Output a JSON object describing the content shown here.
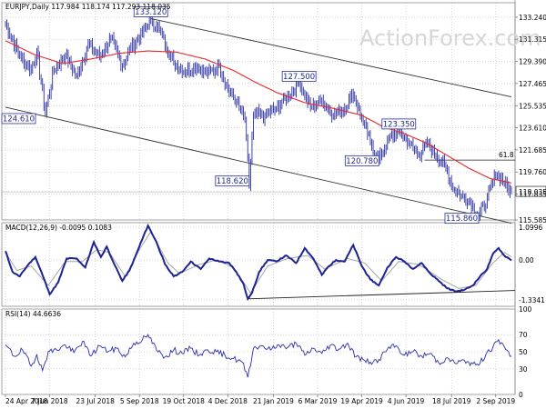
{
  "colors": {
    "price": "#2a2f9e",
    "ma": "#e8262b",
    "channel": "#333333",
    "macd_line": "#1b2395",
    "macd_signal": "#a7a7a7",
    "rsi": "#2a2fb0",
    "grid": "#bcbcbc",
    "label_border": "#2a2f9e",
    "fib_label": "#666666"
  },
  "header": {
    "price_title": "EURJPY,Daily  117.984 118.174 117.293 118.035",
    "macd_title": "MACD(12,26,9) -0.0095 0.1083",
    "rsi_title": "RSI(14) 44.6636"
  },
  "watermark": "ActionForex.com",
  "chart_data": [
    {
      "type": "line",
      "title": "EURJPY,Daily",
      "ohlc_header": {
        "open": 117.984,
        "high": 118.174,
        "low": 117.293,
        "close": 118.035
      },
      "ylim": [
        115.585,
        134.5
      ],
      "y_ticks": [
        "133.240",
        "131.315",
        "129.390",
        "127.465",
        "125.535",
        "123.610",
        "121.685",
        "119.760",
        "117.835",
        "115.585"
      ],
      "y_tick_values": [
        133.24,
        131.315,
        129.39,
        127.465,
        125.535,
        123.61,
        121.685,
        119.76,
        117.835,
        115.585
      ],
      "last_price_tag": {
        "label": "118.035",
        "value": 118.035
      },
      "x_tick_labels": [
        "24 Apr 2018",
        "7 Jun 2018",
        "23 Jul 2018",
        "5 Sep 2018",
        "19 Oct 2018",
        "4 Dec 2018",
        "21 Jan 2019",
        "6 Mar 2019",
        "19 Apr 2019",
        "4 Jun 2019",
        "18 Jul 2019",
        "2 Sep 2019"
      ],
      "x_tick_index": [
        0,
        31,
        63,
        94,
        125,
        156,
        188,
        219,
        250,
        281,
        313,
        344
      ],
      "bar_count": 356,
      "price_anchors": [
        [
          0,
          132.7
        ],
        [
          10,
          129.8
        ],
        [
          18,
          128.7
        ],
        [
          22,
          130.3
        ],
        [
          28,
          124.9
        ],
        [
          34,
          128.7
        ],
        [
          42,
          129.9
        ],
        [
          50,
          128.1
        ],
        [
          58,
          130.9
        ],
        [
          66,
          129.8
        ],
        [
          74,
          131.4
        ],
        [
          82,
          129.0
        ],
        [
          88,
          130.6
        ],
        [
          96,
          131.8
        ],
        [
          102,
          133.12
        ],
        [
          110,
          131.6
        ],
        [
          118,
          129.3
        ],
        [
          126,
          128.5
        ],
        [
          134,
          129.0
        ],
        [
          142,
          128.3
        ],
        [
          150,
          129.0
        ],
        [
          156,
          127.0
        ],
        [
          162,
          125.8
        ],
        [
          168,
          124.3
        ],
        [
          171,
          118.62
        ],
        [
          174,
          124.7
        ],
        [
          182,
          124.7
        ],
        [
          190,
          125.3
        ],
        [
          198,
          126.4
        ],
        [
          206,
          127.5
        ],
        [
          214,
          125.4
        ],
        [
          222,
          126.0
        ],
        [
          230,
          124.7
        ],
        [
          238,
          125.3
        ],
        [
          244,
          126.7
        ],
        [
          250,
          124.3
        ],
        [
          256,
          122.4
        ],
        [
          262,
          120.78
        ],
        [
          268,
          122.5
        ],
        [
          276,
          123.35
        ],
        [
          284,
          122.2
        ],
        [
          290,
          121.2
        ],
        [
          296,
          122.2
        ],
        [
          302,
          121.2
        ],
        [
          308,
          120.4
        ],
        [
          314,
          118.4
        ],
        [
          320,
          117.7
        ],
        [
          326,
          117.2
        ],
        [
          332,
          115.86
        ],
        [
          338,
          117.5
        ],
        [
          344,
          119.5
        ],
        [
          348,
          119.3
        ],
        [
          352,
          118.4
        ],
        [
          355,
          118.035
        ]
      ],
      "ma_anchors": [
        [
          0,
          131.2
        ],
        [
          20,
          130.0
        ],
        [
          40,
          129.2
        ],
        [
          60,
          129.6
        ],
        [
          80,
          130.1
        ],
        [
          100,
          130.3
        ],
        [
          120,
          130.2
        ],
        [
          140,
          129.6
        ],
        [
          160,
          128.6
        ],
        [
          175,
          127.6
        ],
        [
          190,
          126.7
        ],
        [
          210,
          125.8
        ],
        [
          230,
          125.3
        ],
        [
          250,
          124.7
        ],
        [
          265,
          123.7
        ],
        [
          280,
          123.1
        ],
        [
          295,
          122.3
        ],
        [
          310,
          121.2
        ],
        [
          325,
          120.1
        ],
        [
          340,
          119.2
        ],
        [
          355,
          118.8
        ]
      ],
      "channel_lines": [
        {
          "from": [
            102,
            133.12
          ],
          "to": [
            355,
            126.3
          ]
        },
        {
          "from": [
            0,
            125.4
          ],
          "to": [
            355,
            115.3
          ]
        }
      ],
      "horizontal_line": {
        "label": "61.8",
        "value": 120.8,
        "start_index": 294
      },
      "annotations": [
        {
          "label": "124.610",
          "value": 124.61,
          "index": 0
        },
        {
          "label": "133.120",
          "value": 133.12,
          "index": 102
        },
        {
          "label": "118.620",
          "value": 118.62,
          "index": 171
        },
        {
          "label": "127.500",
          "value": 127.5,
          "index": 206
        },
        {
          "label": "123.350",
          "value": 123.35,
          "index": 276
        },
        {
          "label": "120.780",
          "value": 120.78,
          "index": 262
        },
        {
          "label": "115.860",
          "value": 115.86,
          "index": 332
        }
      ],
      "series": [
        {
          "name": "EURJPY",
          "values_ref": "price_anchors"
        },
        {
          "name": "",
          "values_ref": "ma_anchors"
        }
      ]
    },
    {
      "type": "line",
      "title": "MACD(12,26,9)",
      "header_values": {
        "macd": -0.0095,
        "signal": 0.1083
      },
      "ylim": [
        -1.55,
        1.25
      ],
      "y_ticks": [
        "1.0996",
        "0.00",
        "-1.3341"
      ],
      "y_tick_values": [
        1.0996,
        0.0,
        -1.3341
      ],
      "macd_anchors": [
        [
          0,
          0.3
        ],
        [
          5,
          -0.4
        ],
        [
          10,
          -0.55
        ],
        [
          16,
          -0.15
        ],
        [
          21,
          0.1
        ],
        [
          26,
          -0.5
        ],
        [
          31,
          -1.15
        ],
        [
          37,
          -0.75
        ],
        [
          43,
          0.05
        ],
        [
          50,
          0.05
        ],
        [
          56,
          -0.25
        ],
        [
          62,
          0.6
        ],
        [
          67,
          0.1
        ],
        [
          71,
          0.45
        ],
        [
          76,
          -0.1
        ],
        [
          82,
          -0.7
        ],
        [
          87,
          -0.35
        ],
        [
          91,
          0.1
        ],
        [
          96,
          0.7
        ],
        [
          100,
          1.15
        ],
        [
          106,
          0.6
        ],
        [
          112,
          -0.15
        ],
        [
          118,
          -0.55
        ],
        [
          124,
          -0.4
        ],
        [
          130,
          -0.05
        ],
        [
          137,
          -0.3
        ],
        [
          143,
          0.05
        ],
        [
          150,
          -0.05
        ],
        [
          157,
          -0.1
        ],
        [
          162,
          -0.4
        ],
        [
          167,
          -0.8
        ],
        [
          170,
          -1.3
        ],
        [
          173,
          -1.1
        ],
        [
          178,
          -0.4
        ],
        [
          184,
          0.0
        ],
        [
          190,
          -0.05
        ],
        [
          197,
          0.15
        ],
        [
          204,
          -0.1
        ],
        [
          210,
          0.4
        ],
        [
          216,
          0.05
        ],
        [
          222,
          -0.5
        ],
        [
          226,
          -0.25
        ],
        [
          232,
          0.0
        ],
        [
          238,
          -0.05
        ],
        [
          244,
          0.5
        ],
        [
          250,
          -0.2
        ],
        [
          256,
          -0.65
        ],
        [
          262,
          -0.85
        ],
        [
          268,
          -0.25
        ],
        [
          274,
          0.1
        ],
        [
          280,
          -0.05
        ],
        [
          286,
          -0.3
        ],
        [
          292,
          -0.1
        ],
        [
          298,
          -0.45
        ],
        [
          304,
          -0.7
        ],
        [
          310,
          -0.95
        ],
        [
          316,
          -1.05
        ],
        [
          322,
          -1.0
        ],
        [
          328,
          -0.85
        ],
        [
          333,
          -0.55
        ],
        [
          338,
          -0.3
        ],
        [
          342,
          0.2
        ],
        [
          346,
          0.4
        ],
        [
          350,
          0.15
        ],
        [
          355,
          -0.0095
        ]
      ],
      "signal_anchors": [
        [
          0,
          0.25
        ],
        [
          8,
          -0.35
        ],
        [
          18,
          -0.2
        ],
        [
          30,
          -0.85
        ],
        [
          42,
          -0.05
        ],
        [
          54,
          -0.05
        ],
        [
          64,
          0.35
        ],
        [
          73,
          0.25
        ],
        [
          84,
          -0.55
        ],
        [
          94,
          0.35
        ],
        [
          102,
          0.95
        ],
        [
          114,
          -0.1
        ],
        [
          122,
          -0.45
        ],
        [
          136,
          -0.15
        ],
        [
          148,
          0.0
        ],
        [
          160,
          -0.25
        ],
        [
          172,
          -1.1
        ],
        [
          184,
          -0.2
        ],
        [
          198,
          0.05
        ],
        [
          212,
          0.15
        ],
        [
          224,
          -0.3
        ],
        [
          240,
          0.05
        ],
        [
          252,
          -0.1
        ],
        [
          264,
          -0.7
        ],
        [
          276,
          -0.05
        ],
        [
          290,
          -0.15
        ],
        [
          306,
          -0.65
        ],
        [
          318,
          -0.95
        ],
        [
          330,
          -0.85
        ],
        [
          342,
          -0.1
        ],
        [
          350,
          0.25
        ],
        [
          355,
          0.1083
        ]
      ],
      "trendline": {
        "from": [
          170,
          -1.3
        ],
        "to": [
          355,
          -1.02
        ]
      }
    },
    {
      "type": "line",
      "title": "RSI(14)",
      "header_value": 44.6636,
      "ylim": [
        0,
        100
      ],
      "y_ticks": [
        "100",
        "70",
        "50",
        "30",
        "0"
      ],
      "y_tick_values": [
        100,
        70,
        50,
        30,
        0
      ],
      "rsi_anchors": [
        [
          0,
          58
        ],
        [
          6,
          45
        ],
        [
          12,
          52
        ],
        [
          18,
          33
        ],
        [
          22,
          47
        ],
        [
          26,
          28
        ],
        [
          30,
          50
        ],
        [
          36,
          52
        ],
        [
          42,
          58
        ],
        [
          48,
          49
        ],
        [
          54,
          62
        ],
        [
          60,
          45
        ],
        [
          66,
          57
        ],
        [
          72,
          50
        ],
        [
          78,
          54
        ],
        [
          84,
          44
        ],
        [
          90,
          60
        ],
        [
          96,
          64
        ],
        [
          100,
          70
        ],
        [
          106,
          52
        ],
        [
          112,
          44
        ],
        [
          118,
          52
        ],
        [
          124,
          48
        ],
        [
          130,
          54
        ],
        [
          136,
          46
        ],
        [
          142,
          52
        ],
        [
          148,
          50
        ],
        [
          154,
          46
        ],
        [
          160,
          42
        ],
        [
          166,
          38
        ],
        [
          170,
          20
        ],
        [
          174,
          54
        ],
        [
          180,
          57
        ],
        [
          186,
          52
        ],
        [
          192,
          58
        ],
        [
          198,
          55
        ],
        [
          204,
          60
        ],
        [
          210,
          46
        ],
        [
          216,
          54
        ],
        [
          222,
          48
        ],
        [
          228,
          58
        ],
        [
          234,
          53
        ],
        [
          240,
          60
        ],
        [
          246,
          44
        ],
        [
          252,
          40
        ],
        [
          258,
          38
        ],
        [
          262,
          41
        ],
        [
          268,
          53
        ],
        [
          274,
          57
        ],
        [
          280,
          46
        ],
        [
          286,
          50
        ],
        [
          292,
          45
        ],
        [
          298,
          48
        ],
        [
          304,
          37
        ],
        [
          310,
          43
        ],
        [
          316,
          36
        ],
        [
          322,
          40
        ],
        [
          328,
          36
        ],
        [
          332,
          34
        ],
        [
          338,
          50
        ],
        [
          342,
          55
        ],
        [
          346,
          64
        ],
        [
          350,
          56
        ],
        [
          355,
          44.6636
        ]
      ]
    }
  ]
}
